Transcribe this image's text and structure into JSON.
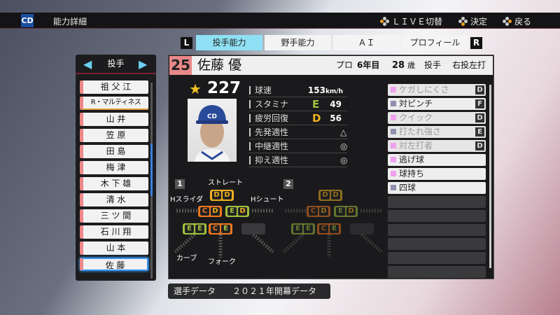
{
  "topbar": {
    "logo": "CD",
    "title": "能力詳細",
    "hints": [
      {
        "icon": "buttons-icon",
        "label": "ＬＩＶＥ切替"
      },
      {
        "icon": "buttons-icon",
        "label": "決定"
      },
      {
        "icon": "buttons-icon",
        "label": "戻る"
      }
    ]
  },
  "tabs": {
    "left": "L",
    "right": "R",
    "items": [
      {
        "label": "投手能力",
        "active": true
      },
      {
        "label": "野手能力"
      },
      {
        "label": "ＡＩ"
      },
      {
        "label": "プロフィール"
      }
    ]
  },
  "list": {
    "category": "投手",
    "players": [
      "祖 父 江",
      "R・マルティネス",
      "山 井",
      "笠 原",
      "田 島",
      "梅 津",
      "木 下 雄",
      "清 水",
      "三 ツ 間",
      "石 川 翔",
      "山 本",
      "佐 藤"
    ],
    "selected": "佐 藤"
  },
  "player": {
    "number": "25",
    "name": "佐藤 優",
    "pro_label": "プロ",
    "years": "6年目",
    "age": "28",
    "age_unit": "歳",
    "position": "投手",
    "handed": "右投左打",
    "overall": "227"
  },
  "stats": [
    {
      "label": "球速",
      "value": "153",
      "unit": "km/h"
    },
    {
      "label": "スタミナ",
      "grade": "E",
      "value": "49"
    },
    {
      "label": "疲労回復",
      "grade": "D",
      "value": "56"
    },
    {
      "label": "先発適性",
      "value": "△"
    },
    {
      "label": "中継適性",
      "value": "◎"
    },
    {
      "label": "抑え適性",
      "value": "◎"
    }
  ],
  "grade_colors": {
    "E": "#a0c040",
    "D": "#f0b020",
    "C": "#f07820"
  },
  "abilities": [
    {
      "name": "ケガしにくさ",
      "rank": "D",
      "color": "#f0a0f0",
      "dim": true
    },
    {
      "name": "対ピンチ",
      "rank": "F",
      "color": "#9090b0"
    },
    {
      "name": "クイック",
      "rank": "D",
      "color": "#f0a0f0",
      "dim": true
    },
    {
      "name": "打たれ強さ",
      "rank": "E",
      "color": "#9090b0",
      "dim": true
    },
    {
      "name": "対左打者",
      "rank": "D",
      "color": "#f0a0f0",
      "dim": true
    },
    {
      "name": "逃げ球",
      "color": "#f0a0f0"
    },
    {
      "name": "球持ち",
      "color": "#f0a0f0"
    },
    {
      "name": "四球",
      "color": "#9090b0"
    }
  ],
  "pitches": {
    "panels": [
      "1",
      "2"
    ],
    "items": [
      {
        "name": "ストレート",
        "grades": [
          "D",
          "D"
        ]
      },
      {
        "name": "Hスライダ",
        "grades": [
          "C",
          "D"
        ]
      },
      {
        "name": "Hシュート",
        "grades": [
          "E",
          "D"
        ]
      },
      {
        "name": "カーブ",
        "grades": [
          "E",
          "E"
        ]
      },
      {
        "name": "フォーク",
        "grades": [
          "C",
          "E"
        ]
      }
    ]
  },
  "footer": {
    "label": "選手データ",
    "value": "２０２１年開幕データ"
  }
}
